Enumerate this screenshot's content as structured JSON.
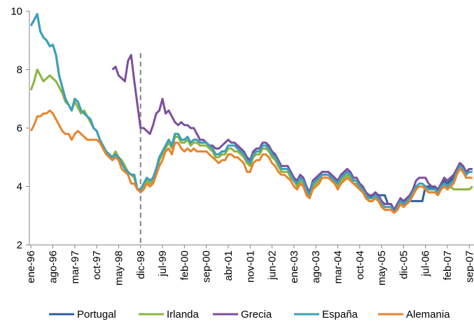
{
  "chart_data": {
    "type": "line",
    "categories": [
      "ene-96",
      null,
      null,
      null,
      null,
      null,
      null,
      "ago-96",
      null,
      null,
      null,
      null,
      null,
      null,
      "mar-97",
      null,
      null,
      null,
      null,
      null,
      null,
      "oct-97",
      null,
      null,
      null,
      null,
      null,
      null,
      "may-98",
      null,
      null,
      null,
      null,
      null,
      null,
      "dic-98",
      null,
      null,
      null,
      null,
      null,
      null,
      "jul-99",
      null,
      null,
      null,
      null,
      null,
      null,
      "feb-00",
      null,
      null,
      null,
      null,
      null,
      null,
      "sep-00",
      null,
      null,
      null,
      null,
      null,
      null,
      "abr-01",
      null,
      null,
      null,
      null,
      null,
      null,
      "nov-01",
      null,
      null,
      null,
      null,
      null,
      null,
      "jun-02",
      null,
      null,
      null,
      null,
      null,
      null,
      "ene-03",
      null,
      null,
      null,
      null,
      null,
      null,
      "ago-03",
      null,
      null,
      null,
      null,
      null,
      null,
      "mar-04",
      null,
      null,
      null,
      null,
      null,
      null,
      "oct-04",
      null,
      null,
      null,
      null,
      null,
      null,
      "may-05",
      null,
      null,
      null,
      null,
      null,
      null,
      "dic-05",
      null,
      null,
      null,
      null,
      null,
      null,
      "jul-06",
      null,
      null,
      null,
      null,
      null,
      null,
      "feb-07",
      null,
      null,
      null,
      null,
      null,
      null,
      "sep-07",
      null
    ],
    "series": [
      {
        "name": "Portugal",
        "color": "#2f5f98",
        "values": [
          9.5,
          9.7,
          9.9,
          9.3,
          9.1,
          9.0,
          8.8,
          8.85,
          8.5,
          7.8,
          7.4,
          7.0,
          6.8,
          6.6,
          7.0,
          6.9,
          6.6,
          6.5,
          6.4,
          6.3,
          6.0,
          5.9,
          5.6,
          5.4,
          5.2,
          5.1,
          5.0,
          5.1,
          5.0,
          4.8,
          4.6,
          4.5,
          4.4,
          4.4,
          3.9,
          3.9,
          4.1,
          4.3,
          4.2,
          4.3,
          4.6,
          5.0,
          5.2,
          5.4,
          5.6,
          5.4,
          5.8,
          5.8,
          5.6,
          5.6,
          5.7,
          5.5,
          5.6,
          5.6,
          5.5,
          5.5,
          5.5,
          5.4,
          5.3,
          5.1,
          5.1,
          5.2,
          5.2,
          5.4,
          5.4,
          5.4,
          5.3,
          5.2,
          5.1,
          4.9,
          4.8,
          5.1,
          5.2,
          5.2,
          5.4,
          5.4,
          5.3,
          5.1,
          5.0,
          4.8,
          4.6,
          4.6,
          4.6,
          4.4,
          4.2,
          4.1,
          4.3,
          4.2,
          3.9,
          3.7,
          4.1,
          4.2,
          4.3,
          4.4,
          4.4,
          4.4,
          4.3,
          4.2,
          4.1,
          4.3,
          4.4,
          4.5,
          4.4,
          4.2,
          4.2,
          4.0,
          3.9,
          3.7,
          3.6,
          3.7,
          3.7,
          3.7,
          3.7,
          3.7,
          3.4,
          3.4,
          3.2,
          3.4,
          3.5,
          3.5,
          3.5,
          3.5,
          3.5,
          3.5,
          3.5,
          3.5,
          4.0,
          4.0,
          3.9,
          4.0,
          3.9,
          4.0,
          4.2,
          4.1,
          4.2,
          4.3,
          4.6,
          4.8,
          4.7,
          4.5,
          4.6,
          4.6
        ]
      },
      {
        "name": "Irlanda",
        "color": "#8db43d",
        "values": [
          7.3,
          7.6,
          8.0,
          7.8,
          7.6,
          7.7,
          7.8,
          7.7,
          7.6,
          7.4,
          7.2,
          6.9,
          6.8,
          6.6,
          6.9,
          6.7,
          6.5,
          6.6,
          6.4,
          6.2,
          6.0,
          5.9,
          5.6,
          5.4,
          5.2,
          5.1,
          5.0,
          5.2,
          5.0,
          4.9,
          4.7,
          4.5,
          4.4,
          4.3,
          3.9,
          3.9,
          4.0,
          4.2,
          4.1,
          4.2,
          4.5,
          4.9,
          5.1,
          5.3,
          5.5,
          5.3,
          5.7,
          5.7,
          5.5,
          5.5,
          5.6,
          5.4,
          5.5,
          5.5,
          5.4,
          5.4,
          5.4,
          5.3,
          5.2,
          5.0,
          5.0,
          5.1,
          5.1,
          5.3,
          5.3,
          5.2,
          5.2,
          5.1,
          5.0,
          4.8,
          4.7,
          5.0,
          5.1,
          5.1,
          5.3,
          5.3,
          5.2,
          5.0,
          4.9,
          4.7,
          4.5,
          4.5,
          4.5,
          4.3,
          4.2,
          4.0,
          4.2,
          4.1,
          3.8,
          3.7,
          4.0,
          4.1,
          4.2,
          4.3,
          4.3,
          4.3,
          4.2,
          4.1,
          4.0,
          4.2,
          4.3,
          4.4,
          4.3,
          4.1,
          4.1,
          3.9,
          3.8,
          3.6,
          3.5,
          3.5,
          3.6,
          3.5,
          3.3,
          3.2,
          3.2,
          3.2,
          3.1,
          3.2,
          3.4,
          3.4,
          3.4,
          3.5,
          3.7,
          3.9,
          4.0,
          4.0,
          3.9,
          3.8,
          3.8,
          3.8,
          3.8,
          3.9,
          4.0,
          3.9,
          4.0,
          3.9,
          3.9,
          3.9,
          3.9,
          3.9,
          3.9,
          4.0
        ]
      },
      {
        "name": "Grecia",
        "color": "#7a4f9f",
        "values": [
          null,
          null,
          null,
          null,
          null,
          null,
          null,
          null,
          null,
          null,
          null,
          null,
          null,
          null,
          null,
          null,
          null,
          null,
          null,
          null,
          null,
          null,
          null,
          null,
          null,
          null,
          8.0,
          8.1,
          7.8,
          7.7,
          7.6,
          8.3,
          8.5,
          7.6,
          6.8,
          6.0,
          6.0,
          5.9,
          5.8,
          6.1,
          6.5,
          6.6,
          7.0,
          6.5,
          6.6,
          6.4,
          6.2,
          6.1,
          6.2,
          6.1,
          6.1,
          6.0,
          6.0,
          5.8,
          5.6,
          5.6,
          5.5,
          5.4,
          5.4,
          5.3,
          5.3,
          5.4,
          5.5,
          5.6,
          5.5,
          5.5,
          5.4,
          5.3,
          5.2,
          5.0,
          4.9,
          5.2,
          5.3,
          5.3,
          5.5,
          5.5,
          5.4,
          5.2,
          5.1,
          4.9,
          4.7,
          4.7,
          4.7,
          4.5,
          4.3,
          4.2,
          4.4,
          4.3,
          4.0,
          3.8,
          4.2,
          4.3,
          4.4,
          4.5,
          4.5,
          4.5,
          4.4,
          4.3,
          4.2,
          4.4,
          4.5,
          4.6,
          4.5,
          4.3,
          4.3,
          4.1,
          4.0,
          3.8,
          3.7,
          3.7,
          3.8,
          3.7,
          3.5,
          3.4,
          3.4,
          3.4,
          3.2,
          3.4,
          3.6,
          3.5,
          3.6,
          3.7,
          3.9,
          4.2,
          4.3,
          4.3,
          4.3,
          4.1,
          4.0,
          4.0,
          3.9,
          4.1,
          4.3,
          4.2,
          4.3,
          4.4,
          4.6,
          4.8,
          4.7,
          4.5,
          4.6,
          4.6
        ]
      },
      {
        "name": "España",
        "color": "#3ba1b9",
        "values": [
          9.5,
          9.7,
          9.9,
          9.3,
          9.1,
          9.0,
          8.8,
          8.85,
          8.5,
          7.8,
          7.4,
          7.0,
          6.8,
          6.6,
          7.0,
          6.9,
          6.6,
          6.5,
          6.4,
          6.3,
          6.0,
          5.9,
          5.6,
          5.4,
          5.2,
          5.1,
          5.0,
          5.1,
          5.0,
          4.8,
          4.6,
          4.5,
          4.4,
          4.4,
          3.9,
          3.9,
          4.1,
          4.3,
          4.2,
          4.3,
          4.6,
          5.0,
          5.2,
          5.4,
          5.6,
          5.4,
          5.8,
          5.8,
          5.6,
          5.6,
          5.7,
          5.5,
          5.6,
          5.6,
          5.5,
          5.5,
          5.5,
          5.4,
          5.3,
          5.1,
          5.1,
          5.2,
          5.2,
          5.4,
          5.4,
          5.4,
          5.3,
          5.2,
          5.1,
          4.9,
          4.8,
          5.1,
          5.2,
          5.2,
          5.4,
          5.4,
          5.3,
          5.1,
          5.0,
          4.8,
          4.6,
          4.6,
          4.6,
          4.4,
          4.2,
          4.1,
          4.3,
          4.2,
          3.9,
          3.7,
          4.1,
          4.2,
          4.3,
          4.4,
          4.4,
          4.4,
          4.3,
          4.2,
          4.1,
          4.3,
          4.4,
          4.5,
          4.4,
          4.2,
          4.2,
          4.0,
          3.9,
          3.7,
          3.6,
          3.6,
          3.7,
          3.6,
          3.4,
          3.3,
          3.3,
          3.3,
          3.1,
          3.3,
          3.5,
          3.4,
          3.5,
          3.6,
          3.8,
          4.0,
          4.1,
          4.1,
          4.0,
          3.9,
          3.9,
          3.9,
          3.8,
          4.0,
          4.1,
          4.0,
          4.1,
          4.2,
          4.5,
          4.7,
          4.6,
          4.4,
          4.5,
          4.5
        ]
      },
      {
        "name": "Alemania",
        "color": "#e8832b",
        "values": [
          5.9,
          6.1,
          6.4,
          6.4,
          6.5,
          6.5,
          6.6,
          6.5,
          6.3,
          6.1,
          5.9,
          5.8,
          5.8,
          5.6,
          5.8,
          5.9,
          5.8,
          5.7,
          5.6,
          5.6,
          5.6,
          5.6,
          5.5,
          5.3,
          5.1,
          5.0,
          4.9,
          5.0,
          4.9,
          4.6,
          4.5,
          4.4,
          4.1,
          4.1,
          3.9,
          3.8,
          3.9,
          4.1,
          4.0,
          4.1,
          4.4,
          4.7,
          4.9,
          5.2,
          5.3,
          5.1,
          5.5,
          5.5,
          5.3,
          5.2,
          5.3,
          5.2,
          5.3,
          5.2,
          5.2,
          5.2,
          5.2,
          5.1,
          5.0,
          4.9,
          4.8,
          4.9,
          4.9,
          5.1,
          5.1,
          5.0,
          5.0,
          4.9,
          4.8,
          4.5,
          4.5,
          4.8,
          4.9,
          4.9,
          5.1,
          5.1,
          5.0,
          4.8,
          4.7,
          4.5,
          4.4,
          4.4,
          4.3,
          4.2,
          4.0,
          3.9,
          4.1,
          4.0,
          3.7,
          3.6,
          3.9,
          4.0,
          4.1,
          4.3,
          4.3,
          4.3,
          4.2,
          4.1,
          3.9,
          4.1,
          4.2,
          4.3,
          4.2,
          4.1,
          4.0,
          3.9,
          3.8,
          3.6,
          3.5,
          3.5,
          3.6,
          3.5,
          3.3,
          3.2,
          3.2,
          3.2,
          3.1,
          3.2,
          3.4,
          3.3,
          3.4,
          3.5,
          3.7,
          3.9,
          4.0,
          4.0,
          3.9,
          3.8,
          3.8,
          3.8,
          3.7,
          3.9,
          4.0,
          3.9,
          4.0,
          4.1,
          4.4,
          4.6,
          4.5,
          4.3,
          4.3,
          4.3
        ]
      }
    ],
    "ylim": [
      2,
      10
    ],
    "yticks": [
      2,
      4,
      6,
      8,
      10
    ],
    "grid": false,
    "legend": "bottom"
  }
}
